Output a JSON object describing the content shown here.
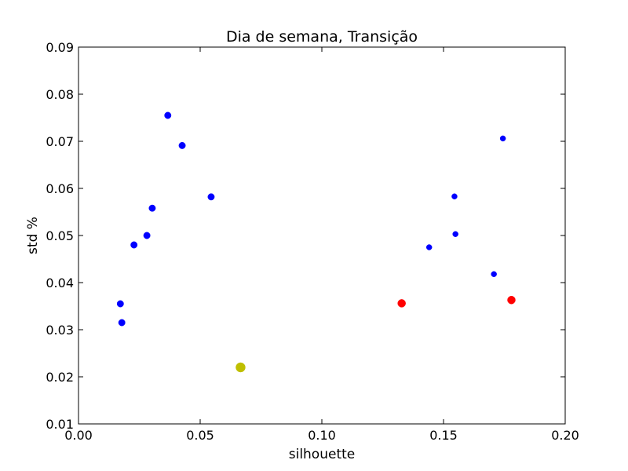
{
  "chart_data": {
    "type": "scatter",
    "title": "Dia de semana, Transição",
    "xlabel": "silhouette",
    "ylabel": "std %",
    "xlim": [
      0.0,
      0.2
    ],
    "ylim": [
      0.01,
      0.09
    ],
    "xticks": [
      "0.00",
      "0.05",
      "0.10",
      "0.15",
      "0.20"
    ],
    "yticks": [
      "0.01",
      "0.02",
      "0.03",
      "0.04",
      "0.05",
      "0.06",
      "0.07",
      "0.08",
      "0.09"
    ],
    "grid": false,
    "series": [
      {
        "color": "#0000ff",
        "marker": "medium",
        "points": [
          {
            "x": 0.0172,
            "y": 0.0355
          },
          {
            "x": 0.0178,
            "y": 0.0315
          },
          {
            "x": 0.0228,
            "y": 0.048
          },
          {
            "x": 0.0281,
            "y": 0.05
          },
          {
            "x": 0.0303,
            "y": 0.0558
          },
          {
            "x": 0.0367,
            "y": 0.0755
          },
          {
            "x": 0.0426,
            "y": 0.0691
          },
          {
            "x": 0.0545,
            "y": 0.0582
          }
        ]
      },
      {
        "color": "#0000ff",
        "marker": "small",
        "points": [
          {
            "x": 0.1441,
            "y": 0.0475
          },
          {
            "x": 0.1545,
            "y": 0.0583
          },
          {
            "x": 0.1549,
            "y": 0.0503
          },
          {
            "x": 0.1707,
            "y": 0.0418
          },
          {
            "x": 0.1744,
            "y": 0.0706
          }
        ]
      },
      {
        "color": "#ff0000",
        "marker": "large",
        "points": [
          {
            "x": 0.1328,
            "y": 0.0356
          },
          {
            "x": 0.1779,
            "y": 0.0363
          }
        ]
      },
      {
        "color": "#bfbf00",
        "marker": "xlarge",
        "points": [
          {
            "x": 0.0666,
            "y": 0.022
          }
        ]
      }
    ]
  }
}
